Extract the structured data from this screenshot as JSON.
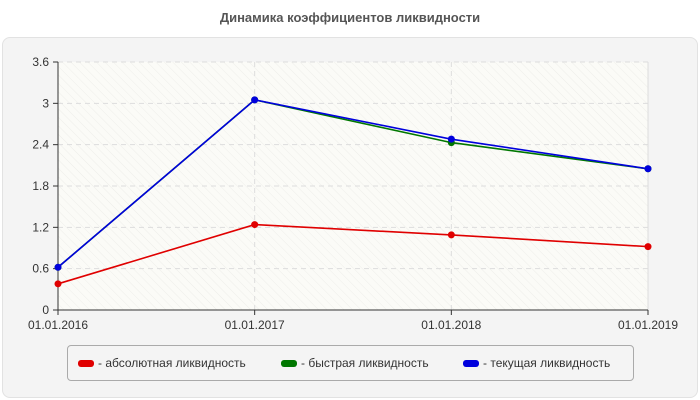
{
  "chart_data": {
    "type": "line",
    "title": "Динамика коэффициентов ликвидности",
    "xlabel": "",
    "ylabel": "",
    "categories": [
      "01.01.2016",
      "01.01.2017",
      "01.01.2018",
      "01.01.2019"
    ],
    "series": [
      {
        "name": "абсолютная ликвидность",
        "color": "#e00000",
        "values": [
          0.38,
          1.24,
          1.09,
          0.92
        ]
      },
      {
        "name": "быстрая ликвидность",
        "color": "#007700",
        "values": [
          0.62,
          3.05,
          2.43,
          2.05
        ]
      },
      {
        "name": "текущая ликвидность",
        "color": "#0000dd",
        "values": [
          0.62,
          3.05,
          2.48,
          2.05
        ]
      }
    ],
    "ylim": [
      0,
      3.6
    ],
    "yticks": [
      0,
      0.6,
      1.2,
      1.8,
      2.4,
      3,
      3.6
    ],
    "ytick_labels": [
      "0",
      "0.6",
      "1.2",
      "1.8",
      "2.4",
      "3",
      "3.6"
    ],
    "grid": true,
    "legend_position": "bottom"
  },
  "legend": {
    "items": [
      {
        "label": "- абсолютная ликвидность",
        "color": "#e00000"
      },
      {
        "label": "- быстрая ликвидность",
        "color": "#007700"
      },
      {
        "label": "- текущая ликвидность",
        "color": "#0000dd"
      }
    ]
  }
}
